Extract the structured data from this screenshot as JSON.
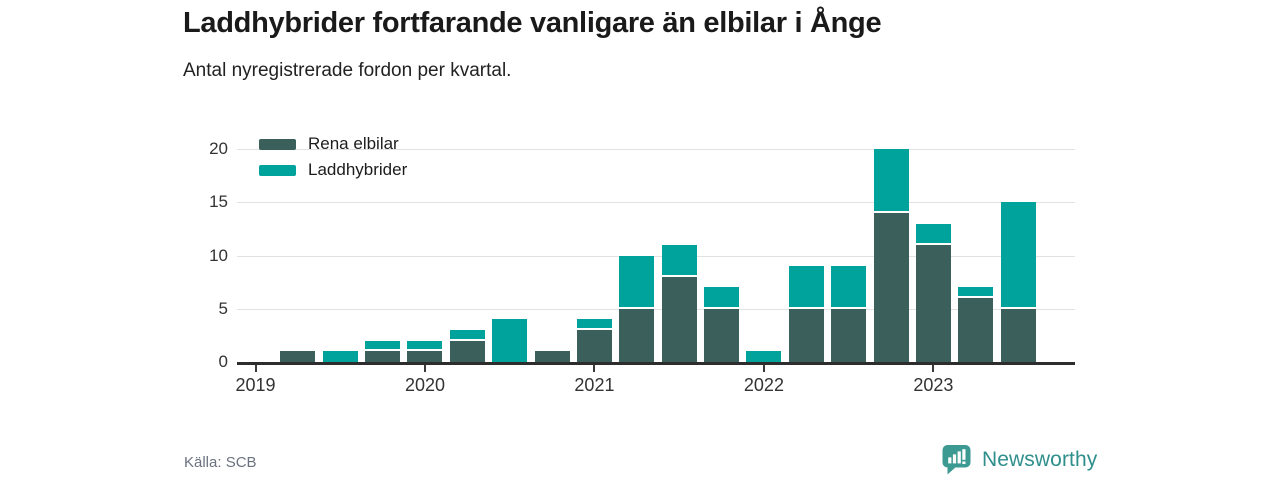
{
  "header": {
    "title": "Laddhybrider fortfarande vanligare än elbilar i Ånge",
    "subtitle": "Antal nyregistrerade fordon per kvartal."
  },
  "footer": {
    "source": "Källa: SCB",
    "brand": "Newsworthy",
    "brand_color": "#2f8f8c",
    "brand_icon_color": "#3d9a92"
  },
  "chart_data": {
    "type": "bar",
    "stacked": true,
    "title": "Laddhybrider fortfarande vanligare än elbilar i Ånge",
    "subtitle": "Antal nyregistrerade fordon per kvartal.",
    "xlabel": "",
    "ylabel": "",
    "ylim": [
      0,
      20
    ],
    "yticks": [
      0,
      5,
      10,
      15,
      20
    ],
    "grid": true,
    "legend_position": "top-left",
    "categories": [
      "2019 Q1",
      "2019 Q2",
      "2019 Q3",
      "2019 Q4",
      "2020 Q1",
      "2020 Q2",
      "2020 Q3",
      "2020 Q4",
      "2021 Q1",
      "2021 Q2",
      "2021 Q3",
      "2021 Q4",
      "2022 Q1",
      "2022 Q2",
      "2022 Q3",
      "2022 Q4",
      "2023 Q1",
      "2023 Q2",
      "2023 Q3"
    ],
    "xticks": [
      {
        "label": "2019",
        "index": 0
      },
      {
        "label": "2020",
        "index": 4
      },
      {
        "label": "2021",
        "index": 8
      },
      {
        "label": "2022",
        "index": 12
      },
      {
        "label": "2023",
        "index": 16
      }
    ],
    "series": [
      {
        "name": "Rena elbilar",
        "color": "#3b605b",
        "values": [
          0,
          1,
          0,
          1,
          1,
          2,
          0,
          1,
          3,
          5,
          8,
          5,
          0,
          5,
          5,
          14,
          11,
          6,
          5
        ]
      },
      {
        "name": "Laddhybrider",
        "color": "#00a39b",
        "values": [
          0,
          0,
          1,
          1,
          1,
          1,
          4,
          0,
          1,
          5,
          3,
          2,
          1,
          4,
          4,
          6,
          2,
          1,
          10
        ]
      }
    ]
  }
}
